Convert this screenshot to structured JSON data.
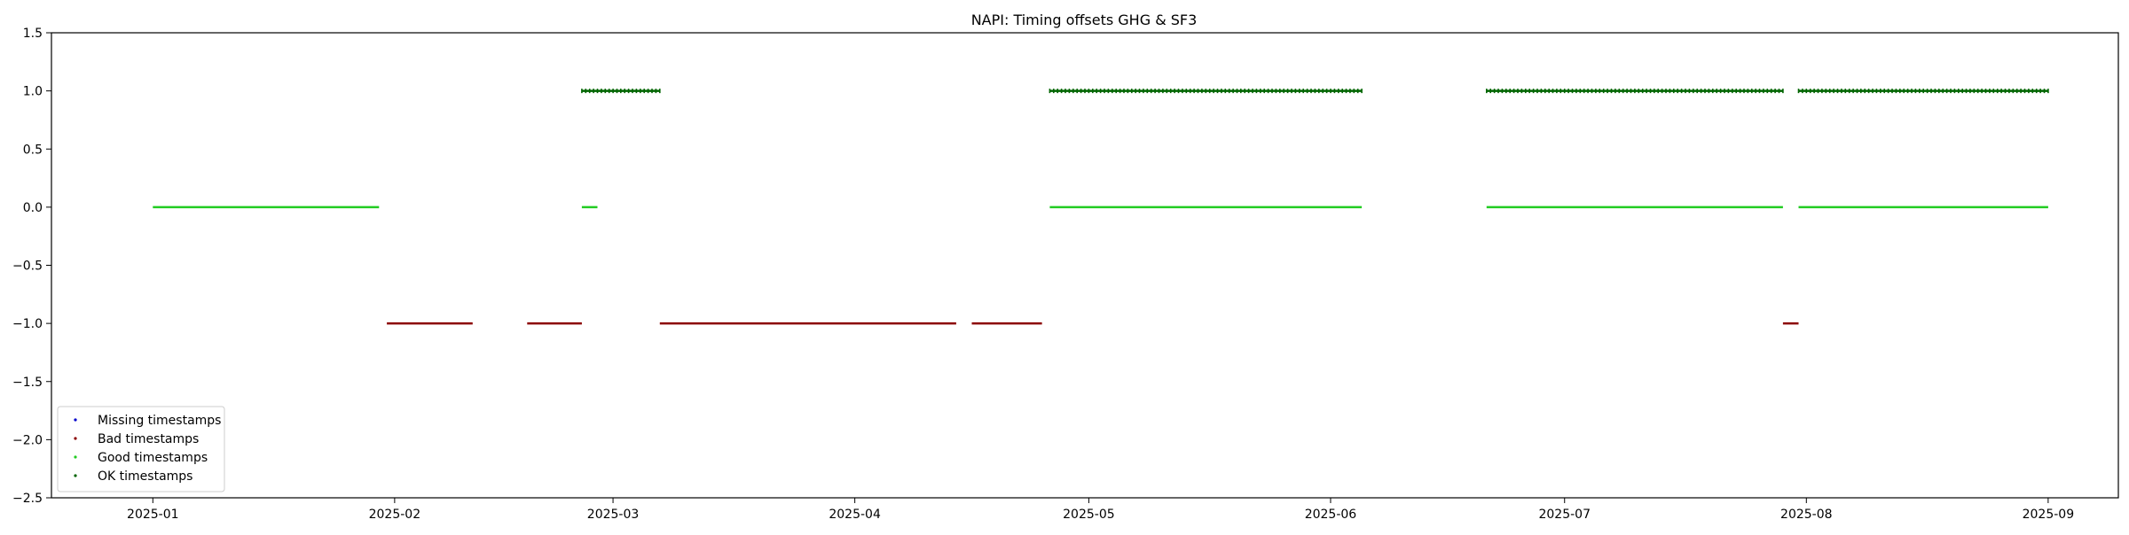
{
  "chart_data": {
    "type": "scatter",
    "title": "NAPI: Timing offsets GHG & SF3",
    "xlabel": "",
    "ylabel": "",
    "x_axis_type": "date",
    "xlim": [
      "2024-12-19",
      "2025-09-10"
    ],
    "ylim": [
      -2.5,
      1.5
    ],
    "xticks": [
      "2025-01",
      "2025-02",
      "2025-03",
      "2025-04",
      "2025-05",
      "2025-06",
      "2025-07",
      "2025-08",
      "2025-09"
    ],
    "yticks": [
      "1.5",
      "1.0",
      "0.5",
      "0.0",
      "−0.5",
      "−1.0",
      "−1.5",
      "−2.0",
      "−2.5"
    ],
    "grid": false,
    "legend_position": "lower left",
    "series": [
      {
        "name": "Missing timestamps",
        "color": "#0000cc",
        "y": -2,
        "segments": []
      },
      {
        "name": "Bad timestamps",
        "color": "#8b0000",
        "y": -1,
        "segments": [
          [
            "2025-01-31",
            "2025-02-11"
          ],
          [
            "2025-02-18",
            "2025-02-25"
          ],
          [
            "2025-03-07",
            "2025-04-14"
          ],
          [
            "2025-04-16",
            "2025-04-25"
          ],
          [
            "2025-07-29",
            "2025-07-31"
          ]
        ]
      },
      {
        "name": "Good timestamps",
        "color": "#22cc22",
        "y": 0,
        "segments": [
          [
            "2025-01-01",
            "2025-01-30"
          ],
          [
            "2025-02-25",
            "2025-02-27"
          ],
          [
            "2025-04-26",
            "2025-06-05"
          ],
          [
            "2025-06-21",
            "2025-07-29"
          ],
          [
            "2025-07-31",
            "2025-09-01"
          ]
        ]
      },
      {
        "name": "OK timestamps",
        "color": "#006400",
        "y": 1,
        "segments": [
          [
            "2025-02-25",
            "2025-03-07"
          ],
          [
            "2025-04-26",
            "2025-06-05"
          ],
          [
            "2025-06-21",
            "2025-07-29"
          ],
          [
            "2025-07-31",
            "2025-09-01"
          ]
        ]
      }
    ]
  }
}
